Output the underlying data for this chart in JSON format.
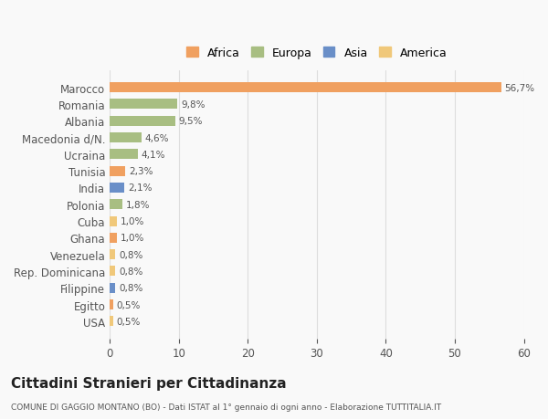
{
  "categories": [
    "USA",
    "Egitto",
    "Filippine",
    "Rep. Dominicana",
    "Venezuela",
    "Ghana",
    "Cuba",
    "Polonia",
    "India",
    "Tunisia",
    "Ucraina",
    "Macedonia d/N.",
    "Albania",
    "Romania",
    "Marocco"
  ],
  "values": [
    0.5,
    0.5,
    0.8,
    0.8,
    0.8,
    1.0,
    1.0,
    1.8,
    2.1,
    2.3,
    4.1,
    4.6,
    9.5,
    9.8,
    56.7
  ],
  "labels": [
    "0,5%",
    "0,5%",
    "0,8%",
    "0,8%",
    "0,8%",
    "1,0%",
    "1,0%",
    "1,8%",
    "2,1%",
    "2,3%",
    "4,1%",
    "4,6%",
    "9,5%",
    "9,8%",
    "56,7%"
  ],
  "colors": [
    "#f0c87a",
    "#f0a060",
    "#6a8fc8",
    "#f0c87a",
    "#f0c87a",
    "#f0a060",
    "#f0c87a",
    "#a8be82",
    "#6a8fc8",
    "#f0a060",
    "#a8be82",
    "#a8be82",
    "#a8be82",
    "#a8be82",
    "#f0a060"
  ],
  "continent_colors": {
    "Africa": "#f0a060",
    "Europa": "#a8be82",
    "Asia": "#6a8fc8",
    "America": "#f0c87a"
  },
  "legend_entries": [
    "Africa",
    "Europa",
    "Asia",
    "America"
  ],
  "title": "Cittadini Stranieri per Cittadinanza",
  "subtitle": "COMUNE DI GAGGIO MONTANO (BO) - Dati ISTAT al 1° gennaio di ogni anno - Elaborazione TUTTITALIA.IT",
  "xlim": [
    0,
    60
  ],
  "xticks": [
    0,
    10,
    20,
    30,
    40,
    50,
    60
  ],
  "background_color": "#f9f9f9",
  "grid_color": "#dddddd",
  "text_color": "#555555"
}
